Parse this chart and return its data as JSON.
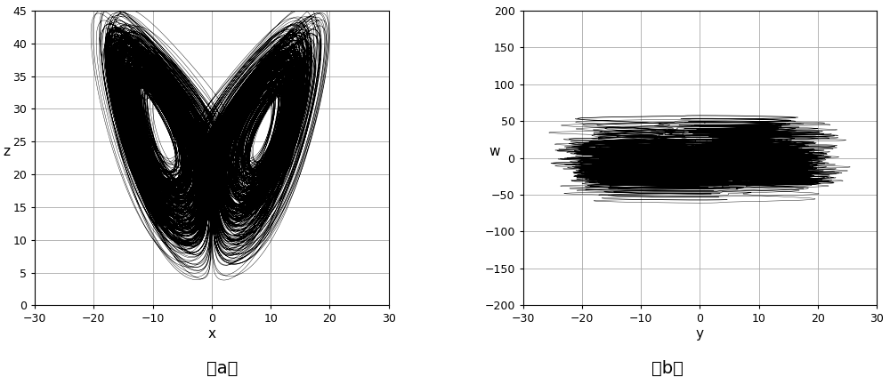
{
  "fig_width": 10.0,
  "fig_height": 4.24,
  "dpi": 100,
  "left_xlim": [
    -30,
    30
  ],
  "left_ylim": [
    0,
    45
  ],
  "left_xlabel": "x",
  "left_ylabel": "z",
  "left_xticks": [
    -30,
    -20,
    -10,
    0,
    10,
    20,
    30
  ],
  "left_yticks": [
    0,
    5,
    10,
    15,
    20,
    25,
    30,
    35,
    40,
    45
  ],
  "right_xlim": [
    -30,
    30
  ],
  "right_ylim": [
    -200,
    200
  ],
  "right_xlabel": "y",
  "right_ylabel": "w",
  "right_xticks": [
    -30,
    -20,
    -10,
    0,
    10,
    20,
    30
  ],
  "right_yticks": [
    -200,
    -150,
    -100,
    -50,
    0,
    50,
    100,
    150,
    200
  ],
  "label_a": "（a）",
  "label_b": "（b）",
  "line_color": "black",
  "line_width": 0.3,
  "grid_color": "#aaaaaa",
  "bg_color": "white",
  "label_fontsize": 14,
  "axis_label_fontsize": 11
}
